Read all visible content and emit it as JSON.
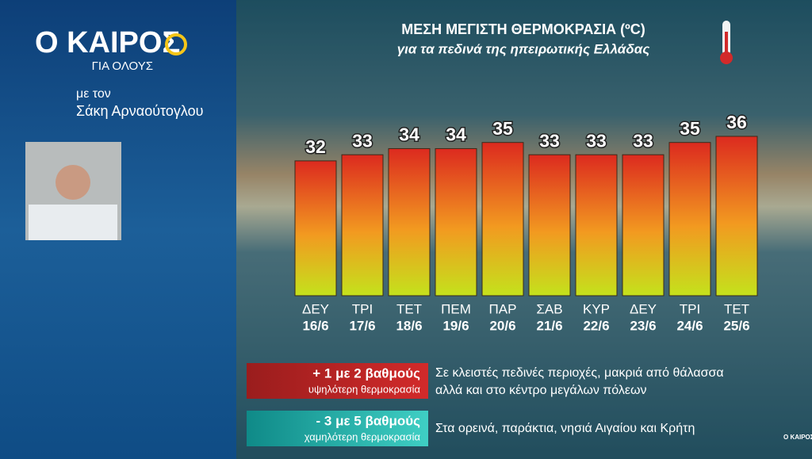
{
  "logo": {
    "title": "Ο ΚΑΙΡΟΣ",
    "subtitle": "ΓΙΑ ΟΛΟΥΣ"
  },
  "presenter": {
    "prefix": "με τον",
    "name": "Σάκη Αρναούτογλου"
  },
  "chart_data": {
    "type": "bar",
    "title": "ΜΕΣΗ ΜΕΓΙΣΤΗ ΘΕΡΜΟΚΡΑΣΙΑ (ºC)",
    "subtitle": "για τα πεδινά της ηπειρωτικής Ελλάδας",
    "categories": [
      "ΔΕΥ",
      "ΤΡΙ",
      "ΤΕΤ",
      "ΠΕΜ",
      "ΠΑΡ",
      "ΣΑΒ",
      "ΚΥΡ",
      "ΔΕΥ",
      "ΤΡΙ",
      "ΤΕΤ"
    ],
    "dates": [
      "16/6",
      "17/6",
      "18/6",
      "19/6",
      "20/6",
      "21/6",
      "22/6",
      "23/6",
      "24/6",
      "25/6"
    ],
    "values": [
      32,
      33,
      34,
      34,
      35,
      33,
      33,
      33,
      35,
      36
    ],
    "color": [
      "#dc2a1f",
      "#f29a20",
      "#c4e21c"
    ],
    "ylim": [
      10,
      37
    ]
  },
  "notes": [
    {
      "headline": "+  1 με 2 βαθμούς",
      "caption": "υψηλότερη θερμοκρασία",
      "description": [
        "Σε κλειστές πεδινές περιοχές, μακριά από θάλασσα",
        "αλλά και στο κέντρο μεγάλων πόλεων"
      ]
    },
    {
      "headline": "-  3 με 5 βαθμούς",
      "caption": "χαμηλότερη θερμοκρασία",
      "description": [
        "Στα ορεινά, παράκτια, νησιά Αιγαίου και Κρήτη"
      ]
    }
  ],
  "corner_logo": "Ο ΚΑΙΡΟΣ"
}
